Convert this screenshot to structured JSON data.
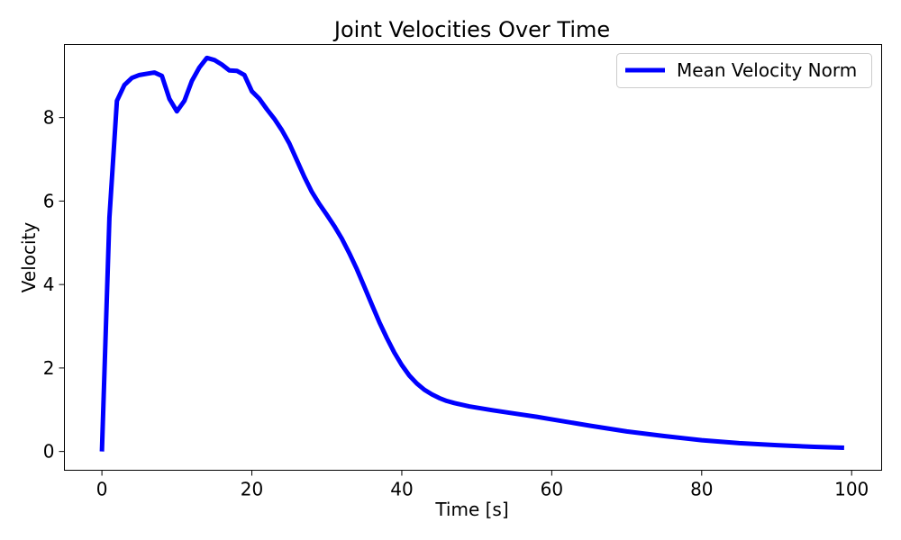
{
  "chart_data": {
    "type": "line",
    "title": "Joint Velocities Over Time",
    "xlabel": "Time [s]",
    "ylabel": "Velocity",
    "xlim": [
      -5,
      104
    ],
    "ylim": [
      -0.45,
      9.75
    ],
    "xticks": [
      0,
      20,
      40,
      60,
      80,
      100
    ],
    "yticks": [
      0,
      2,
      4,
      6,
      8
    ],
    "xtick_labels": [
      "0",
      "20",
      "40",
      "60",
      "80",
      "100"
    ],
    "ytick_labels": [
      "0",
      "2",
      "4",
      "6",
      "8"
    ],
    "grid": false,
    "legend_position": "top-right",
    "series": [
      {
        "name": "Mean Velocity Norm",
        "color": "#0000ff",
        "x": [
          0,
          1,
          2,
          3,
          4,
          5,
          6,
          7,
          8,
          9,
          10,
          11,
          12,
          13,
          14,
          15,
          16,
          17,
          18,
          19,
          20,
          21,
          22,
          23,
          24,
          25,
          26,
          27,
          28,
          29,
          30,
          31,
          32,
          33,
          34,
          35,
          36,
          37,
          38,
          39,
          40,
          41,
          42,
          43,
          44,
          45,
          46,
          47,
          48,
          49,
          50,
          52,
          55,
          58,
          60,
          65,
          70,
          75,
          80,
          85,
          90,
          95,
          99
        ],
        "y": [
          0.0,
          5.6,
          8.4,
          8.78,
          8.95,
          9.02,
          9.05,
          9.08,
          9.0,
          8.45,
          8.15,
          8.4,
          8.88,
          9.2,
          9.43,
          9.38,
          9.27,
          9.13,
          9.12,
          9.02,
          8.63,
          8.45,
          8.2,
          7.97,
          7.7,
          7.38,
          6.98,
          6.58,
          6.22,
          5.93,
          5.67,
          5.4,
          5.1,
          4.75,
          4.37,
          3.95,
          3.52,
          3.1,
          2.72,
          2.37,
          2.07,
          1.82,
          1.63,
          1.48,
          1.37,
          1.28,
          1.21,
          1.16,
          1.12,
          1.08,
          1.05,
          0.99,
          0.91,
          0.83,
          0.77,
          0.62,
          0.48,
          0.37,
          0.27,
          0.2,
          0.15,
          0.11,
          0.09
        ]
      }
    ]
  }
}
